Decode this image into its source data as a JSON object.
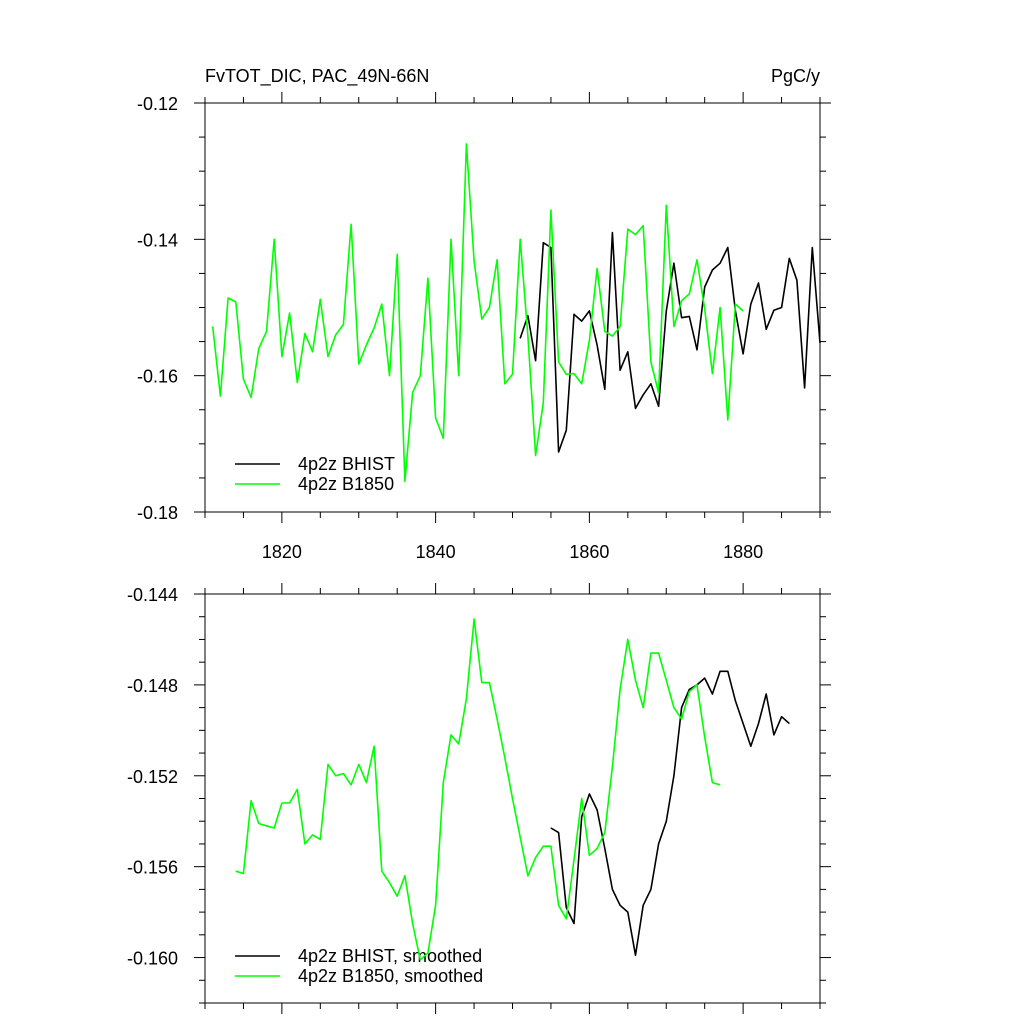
{
  "header": {
    "title": "FvTOT_DIC, PAC_49N-66N",
    "units": "PgC/y"
  },
  "colors": {
    "bhist": "#000000",
    "b1850": "#00ff00"
  },
  "chart_data": [
    {
      "type": "line",
      "title": "FvTOT_DIC, PAC_49N-66N",
      "units": "PgC/y",
      "xlim": [
        1810,
        1890
      ],
      "ylim": [
        -0.18,
        -0.12
      ],
      "xticks": [
        1820,
        1840,
        1860,
        1880
      ],
      "xtick_labels": [
        "1820",
        "1840",
        "1860",
        "1880"
      ],
      "yticks": [
        -0.18,
        -0.16,
        -0.14,
        -0.12
      ],
      "ytick_labels": [
        "-0.18",
        "-0.16",
        "-0.14",
        "-0.12"
      ],
      "legend": "bottom-left",
      "series": [
        {
          "name": "4p2z BHIST",
          "color": "#000000",
          "x": [
            1851,
            1852,
            1853,
            1854,
            1855,
            1856,
            1857,
            1858,
            1859,
            1860,
            1861,
            1862,
            1863,
            1864,
            1865,
            1866,
            1867,
            1868,
            1869,
            1870,
            1871,
            1872,
            1873,
            1874,
            1875,
            1876,
            1877,
            1878,
            1879,
            1880,
            1881,
            1882,
            1883,
            1884,
            1885,
            1886,
            1887,
            1888,
            1889,
            1890
          ],
          "values": [
            -0.1545,
            -0.1512,
            -0.1578,
            -0.1405,
            -0.1412,
            -0.1712,
            -0.168,
            -0.151,
            -0.152,
            -0.1505,
            -0.1555,
            -0.162,
            -0.139,
            -0.1592,
            -0.1565,
            -0.1648,
            -0.1628,
            -0.1612,
            -0.1645,
            -0.1505,
            -0.1435,
            -0.1515,
            -0.1513,
            -0.1562,
            -0.147,
            -0.1445,
            -0.1435,
            -0.1412,
            -0.1505,
            -0.1568,
            -0.1495,
            -0.1464,
            -0.1532,
            -0.1504,
            -0.15,
            -0.1428,
            -0.146,
            -0.1618,
            -0.1412,
            -0.1552
          ]
        },
        {
          "name": "4p2z B1850",
          "color": "#00ff00",
          "x": [
            1811,
            1812,
            1813,
            1814,
            1815,
            1816,
            1817,
            1818,
            1819,
            1820,
            1821,
            1822,
            1823,
            1824,
            1825,
            1826,
            1827,
            1828,
            1829,
            1830,
            1831,
            1832,
            1833,
            1834,
            1835,
            1836,
            1837,
            1838,
            1839,
            1840,
            1841,
            1842,
            1843,
            1844,
            1845,
            1846,
            1847,
            1848,
            1849,
            1850,
            1851,
            1852,
            1853,
            1854,
            1855,
            1856,
            1857,
            1858,
            1859,
            1860,
            1861,
            1862,
            1863,
            1864,
            1865,
            1866,
            1867,
            1868,
            1869,
            1870,
            1871,
            1872,
            1873,
            1874,
            1875,
            1876,
            1877,
            1878,
            1879,
            1880
          ],
          "values": [
            -0.1528,
            -0.163,
            -0.1486,
            -0.1492,
            -0.1605,
            -0.1632,
            -0.156,
            -0.1535,
            -0.14,
            -0.1572,
            -0.1508,
            -0.161,
            -0.1538,
            -0.1565,
            -0.1488,
            -0.1572,
            -0.154,
            -0.1525,
            -0.1378,
            -0.1583,
            -0.1555,
            -0.153,
            -0.1495,
            -0.16,
            -0.1422,
            -0.1755,
            -0.1625,
            -0.16,
            -0.1457,
            -0.1662,
            -0.1692,
            -0.14,
            -0.16,
            -0.126,
            -0.1432,
            -0.1517,
            -0.15,
            -0.143,
            -0.1612,
            -0.1598,
            -0.14,
            -0.1542,
            -0.1717,
            -0.164,
            -0.1357,
            -0.158,
            -0.1598,
            -0.1597,
            -0.1612,
            -0.1548,
            -0.1443,
            -0.1535,
            -0.1542,
            -0.1528,
            -0.1385,
            -0.1393,
            -0.138,
            -0.158,
            -0.1625,
            -0.135,
            -0.1528,
            -0.149,
            -0.148,
            -0.143,
            -0.1502,
            -0.1597,
            -0.15,
            -0.1665,
            -0.1495,
            -0.1505
          ]
        }
      ]
    },
    {
      "type": "line",
      "xlim": [
        1810,
        1890
      ],
      "ylim": [
        -0.162,
        -0.144
      ],
      "xticks": [
        1820,
        1840,
        1860,
        1880
      ],
      "yticks": [
        -0.16,
        -0.156,
        -0.152,
        -0.148,
        -0.144
      ],
      "ytick_labels": [
        "-0.160",
        "-0.156",
        "-0.152",
        "-0.148",
        "-0.144"
      ],
      "legend": "bottom-left",
      "series": [
        {
          "name": "4p2z BHIST, smoothed",
          "color": "#000000",
          "x": [
            1855,
            1856,
            1857,
            1858,
            1859,
            1860,
            1861,
            1862,
            1863,
            1864,
            1865,
            1866,
            1867,
            1868,
            1869,
            1870,
            1871,
            1872,
            1873,
            1874,
            1875,
            1876,
            1877,
            1878,
            1879,
            1880,
            1881,
            1882,
            1883,
            1884,
            1885,
            1886
          ],
          "values": [
            -0.1543,
            -0.1545,
            -0.1578,
            -0.1585,
            -0.1538,
            -0.1528,
            -0.1535,
            -0.1552,
            -0.157,
            -0.1577,
            -0.158,
            -0.1599,
            -0.1577,
            -0.157,
            -0.155,
            -0.154,
            -0.152,
            -0.149,
            -0.1482,
            -0.148,
            -0.1477,
            -0.1484,
            -0.1474,
            -0.1474,
            -0.1487,
            -0.1497,
            -0.1507,
            -0.1497,
            -0.1484,
            -0.1502,
            -0.1494,
            -0.1497
          ]
        },
        {
          "name": "4p2z B1850, smoothed",
          "color": "#00ff00",
          "x": [
            1814,
            1815,
            1816,
            1817,
            1818,
            1819,
            1820,
            1821,
            1822,
            1823,
            1824,
            1825,
            1826,
            1827,
            1828,
            1829,
            1830,
            1831,
            1832,
            1833,
            1834,
            1835,
            1836,
            1837,
            1838,
            1839,
            1840,
            1841,
            1842,
            1843,
            1844,
            1845,
            1846,
            1847,
            1848,
            1849,
            1850,
            1851,
            1852,
            1853,
            1854,
            1855,
            1856,
            1857,
            1858,
            1859,
            1860,
            1861,
            1862,
            1863,
            1864,
            1865,
            1866,
            1867,
            1868,
            1869,
            1870,
            1871,
            1872,
            1873,
            1874,
            1875,
            1876,
            1877
          ],
          "values": [
            -0.1562,
            -0.1563,
            -0.1531,
            -0.1541,
            -0.1542,
            -0.1543,
            -0.1532,
            -0.1532,
            -0.1526,
            -0.155,
            -0.1546,
            -0.1548,
            -0.1515,
            -0.152,
            -0.1519,
            -0.1524,
            -0.1515,
            -0.1523,
            -0.1507,
            -0.1562,
            -0.1567,
            -0.1573,
            -0.1564,
            -0.1585,
            -0.1601,
            -0.1598,
            -0.1577,
            -0.1523,
            -0.1502,
            -0.1506,
            -0.1486,
            -0.1451,
            -0.1479,
            -0.1479,
            -0.1495,
            -0.1512,
            -0.153,
            -0.1547,
            -0.1564,
            -0.1556,
            -0.1551,
            -0.1551,
            -0.1577,
            -0.1583,
            -0.1557,
            -0.153,
            -0.1555,
            -0.1552,
            -0.1545,
            -0.1516,
            -0.1482,
            -0.146,
            -0.1478,
            -0.149,
            -0.1466,
            -0.1466,
            -0.1478,
            -0.149,
            -0.1495,
            -0.1483,
            -0.148,
            -0.1503,
            -0.1523,
            -0.1524
          ]
        }
      ]
    }
  ]
}
